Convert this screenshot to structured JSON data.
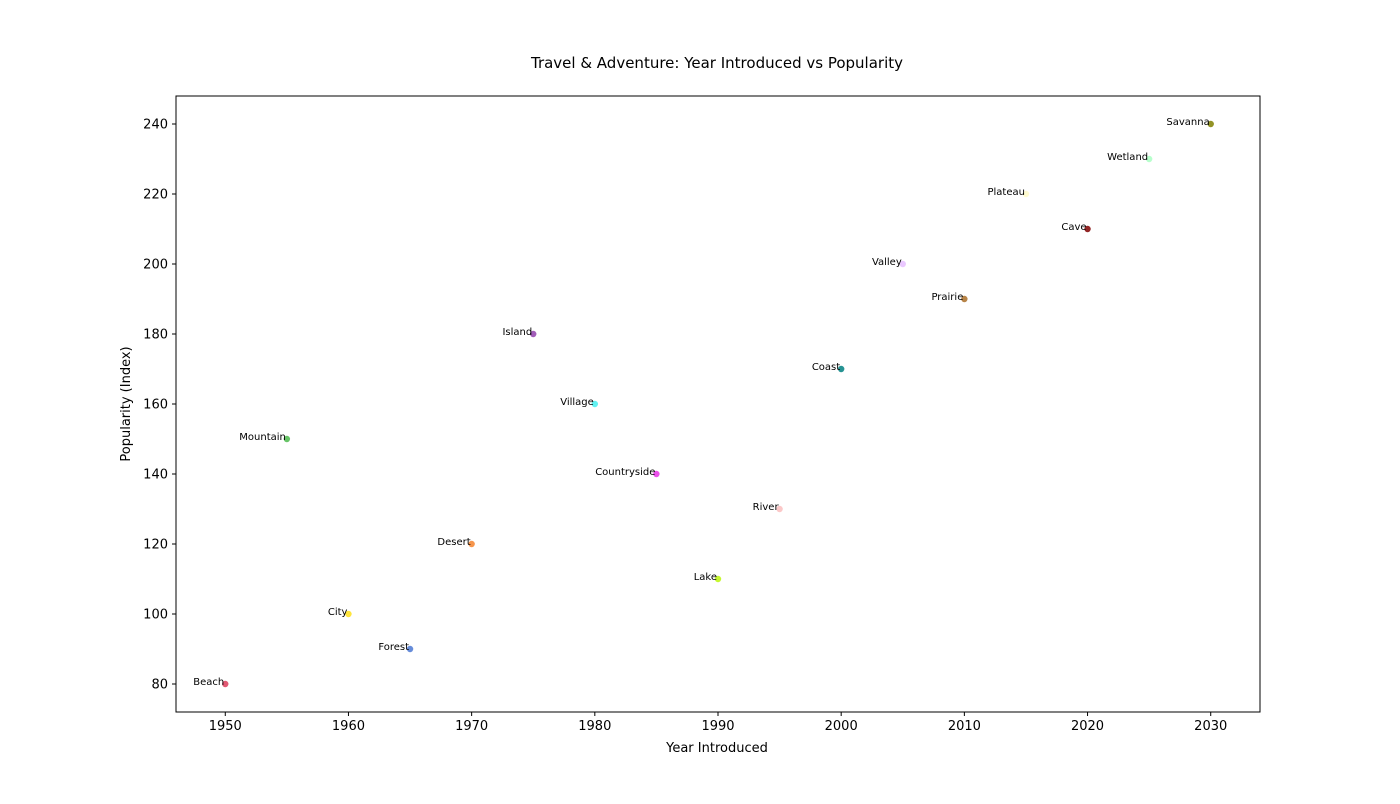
{
  "chart_data": {
    "type": "scatter",
    "title": "Travel & Adventure: Year Introduced vs Popularity",
    "xlabel": "Year Introduced",
    "ylabel": "Popularity (Index)",
    "xlim": [
      1946,
      2034
    ],
    "ylim": [
      72,
      248
    ],
    "xticks": [
      1950,
      1960,
      1970,
      1980,
      1990,
      2000,
      2010,
      2020,
      2030
    ],
    "yticks": [
      80,
      100,
      120,
      140,
      160,
      180,
      200,
      220,
      240
    ],
    "grid": false,
    "legend": false,
    "points": [
      {
        "label": "Beach",
        "x": 1950,
        "y": 80,
        "color": "#dc3c5a"
      },
      {
        "label": "Mountain",
        "x": 1955,
        "y": 150,
        "color": "#4cba4c"
      },
      {
        "label": "City",
        "x": 1960,
        "y": 100,
        "color": "#ffe11a"
      },
      {
        "label": "Forest",
        "x": 1965,
        "y": 90,
        "color": "#4b78d2"
      },
      {
        "label": "Desert",
        "x": 1970,
        "y": 120,
        "color": "#f5822d"
      },
      {
        "label": "Island",
        "x": 1975,
        "y": 180,
        "color": "#9141ac"
      },
      {
        "label": "Village",
        "x": 1980,
        "y": 160,
        "color": "#46f0f0"
      },
      {
        "label": "Countryside",
        "x": 1985,
        "y": 140,
        "color": "#e632e6"
      },
      {
        "label": "Lake",
        "x": 1990,
        "y": 110,
        "color": "#bcf60c"
      },
      {
        "label": "River",
        "x": 1995,
        "y": 130,
        "color": "#fabebe"
      },
      {
        "label": "Coast",
        "x": 2000,
        "y": 170,
        "color": "#008080"
      },
      {
        "label": "Valley",
        "x": 2005,
        "y": 200,
        "color": "#e6beff"
      },
      {
        "label": "Prairie",
        "x": 2010,
        "y": 190,
        "color": "#aa6e28"
      },
      {
        "label": "Plateau",
        "x": 2015,
        "y": 220,
        "color": "#fffac8"
      },
      {
        "label": "Cave",
        "x": 2020,
        "y": 210,
        "color": "#800000"
      },
      {
        "label": "Wetland",
        "x": 2025,
        "y": 230,
        "color": "#aaffc3"
      },
      {
        "label": "Savanna",
        "x": 2030,
        "y": 240,
        "color": "#808000"
      }
    ]
  }
}
